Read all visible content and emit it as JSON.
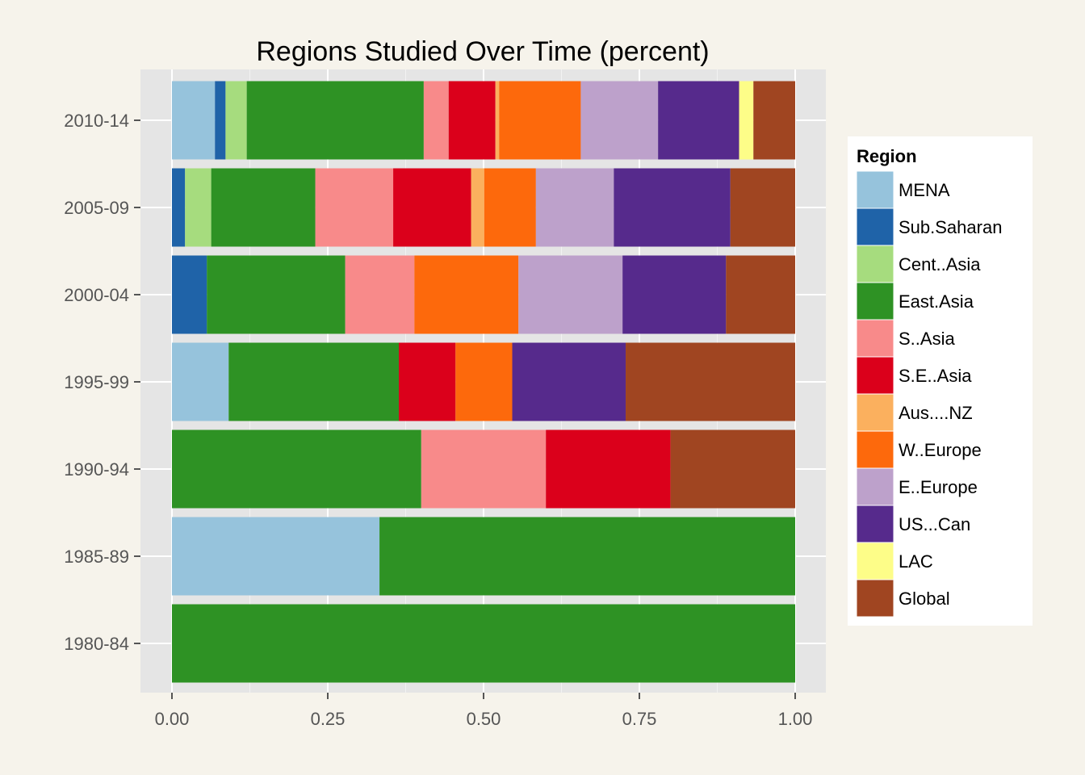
{
  "chart_data": {
    "type": "bar",
    "orientation": "horizontal",
    "stacked": true,
    "title": "Regions Studied Over Time (percent)",
    "xlabel": "",
    "ylabel": "",
    "xlim": [
      0,
      1
    ],
    "x_ticks": [
      "0.00",
      "0.25",
      "0.50",
      "0.75",
      "1.00"
    ],
    "grid": true,
    "legend_title": "Region",
    "legend_position": "right",
    "categories": [
      "2010-14",
      "2005-09",
      "2000-04",
      "1995-99",
      "1990-94",
      "1985-89",
      "1980-84"
    ],
    "series": [
      {
        "name": "MENA",
        "color": "#96c3dc",
        "values": [
          0.069,
          0.0,
          0.0,
          0.091,
          0.0,
          0.333,
          0.0
        ]
      },
      {
        "name": "Sub.Saharan",
        "color": "#1f63a8",
        "values": [
          0.017,
          0.021,
          0.056,
          0.0,
          0.0,
          0.0,
          0.0
        ]
      },
      {
        "name": "Cent..Asia",
        "color": "#a6dc7e",
        "values": [
          0.034,
          0.042,
          0.0,
          0.0,
          0.0,
          0.0,
          0.0
        ]
      },
      {
        "name": "East.Asia",
        "color": "#2e9224",
        "values": [
          0.284,
          0.167,
          0.222,
          0.273,
          0.4,
          0.667,
          1.0
        ]
      },
      {
        "name": "S..Asia",
        "color": "#f88a8a",
        "values": [
          0.04,
          0.125,
          0.111,
          0.0,
          0.2,
          0.0,
          0.0
        ]
      },
      {
        "name": "S.E..Asia",
        "color": "#db001b",
        "values": [
          0.075,
          0.125,
          0.0,
          0.091,
          0.2,
          0.0,
          0.0
        ]
      },
      {
        "name": "Aus....NZ",
        "color": "#fbb05e",
        "values": [
          0.006,
          0.021,
          0.0,
          0.0,
          0.0,
          0.0,
          0.0
        ]
      },
      {
        "name": "W..Europe",
        "color": "#fd690c",
        "values": [
          0.131,
          0.083,
          0.167,
          0.091,
          0.0,
          0.0,
          0.0
        ]
      },
      {
        "name": "E..Europe",
        "color": "#bda1cb",
        "values": [
          0.124,
          0.125,
          0.167,
          0.0,
          0.0,
          0.0,
          0.0
        ]
      },
      {
        "name": "US...Can",
        "color": "#562a8c",
        "values": [
          0.13,
          0.187,
          0.166,
          0.182,
          0.0,
          0.0,
          0.0
        ]
      },
      {
        "name": "LAC",
        "color": "#fdfd88",
        "values": [
          0.023,
          0.0,
          0.0,
          0.0,
          0.0,
          0.0,
          0.0
        ]
      },
      {
        "name": "Global",
        "color": "#a04521",
        "values": [
          0.067,
          0.104,
          0.111,
          0.272,
          0.2,
          0.0,
          0.0
        ]
      }
    ]
  }
}
